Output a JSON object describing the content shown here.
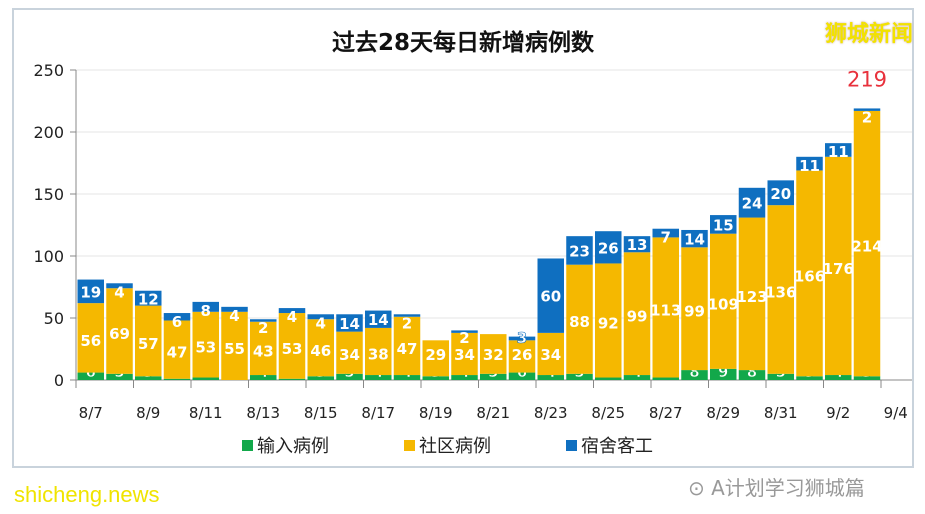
{
  "chart_data": {
    "type": "bar",
    "stacked": true,
    "title": "过去28天每日新增病例数",
    "categories": [
      "8/7",
      "8/8",
      "8/9",
      "8/10",
      "8/11",
      "8/12",
      "8/13",
      "8/14",
      "8/15",
      "8/16",
      "8/17",
      "8/18",
      "8/19",
      "8/20",
      "8/21",
      "8/22",
      "8/23",
      "8/24",
      "8/25",
      "8/26",
      "8/27",
      "8/28",
      "8/29",
      "8/30",
      "8/31",
      "9/1",
      "9/2",
      "9/3"
    ],
    "x_tick_labels": [
      "8/7",
      "8/9",
      "8/11",
      "8/13",
      "8/15",
      "8/17",
      "8/19",
      "8/21",
      "8/23",
      "8/25",
      "8/27",
      "8/29",
      "8/31",
      "9/2",
      "9/4"
    ],
    "ylim": [
      0,
      250
    ],
    "y_ticks": [
      0,
      50,
      100,
      150,
      200,
      250
    ],
    "grid": true,
    "legend_position": "bottom",
    "series": [
      {
        "name": "输入病例",
        "color": "#12a84a",
        "values": [
          6,
          5,
          3,
          1,
          2,
          0,
          4,
          1,
          3,
          5,
          4,
          4,
          3,
          4,
          5,
          6,
          4,
          5,
          2,
          4,
          2,
          8,
          9,
          8,
          5,
          3,
          4,
          3
        ]
      },
      {
        "name": "社区病例",
        "color": "#f5b800",
        "values": [
          56,
          69,
          57,
          47,
          53,
          55,
          43,
          53,
          46,
          34,
          38,
          47,
          29,
          34,
          32,
          26,
          34,
          88,
          92,
          99,
          113,
          99,
          109,
          123,
          136,
          166,
          176,
          214
        ]
      },
      {
        "name": "宿舍客工",
        "color": "#0f6fc0",
        "values": [
          19,
          4,
          12,
          6,
          8,
          4,
          2,
          4,
          4,
          14,
          14,
          2,
          0,
          2,
          0,
          3,
          60,
          23,
          26,
          13,
          7,
          14,
          15,
          24,
          20,
          11,
          11,
          2
        ]
      }
    ],
    "annotation": {
      "label": "219",
      "color": "#e8313c"
    }
  },
  "watermarks": {
    "top_right": "狮城新闻",
    "bottom_left": "shicheng.news",
    "wechat": "A计划学习狮城篇"
  }
}
